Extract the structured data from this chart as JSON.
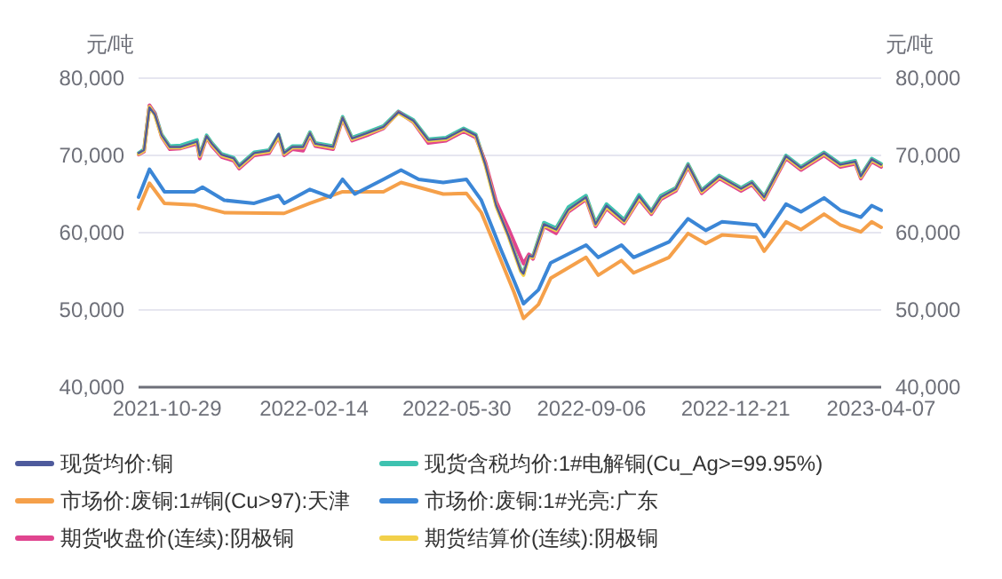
{
  "chart_data": {
    "type": "line",
    "ylabel": "元/吨",
    "y2label": "元/吨",
    "xlim": [
      "2021-10-08",
      "2023-04-07"
    ],
    "xticks": [
      "2021-10-29",
      "2022-02-14",
      "2022-05-30",
      "2022-09-06",
      "2022-12-21",
      "2023-04-07"
    ],
    "ylim": [
      40000,
      80000
    ],
    "yticks": [
      {
        "value": 40000,
        "label": "40,000"
      },
      {
        "value": 50000,
        "label": "50,000"
      },
      {
        "value": 60000,
        "label": "60,000"
      },
      {
        "value": 70000,
        "label": "70,000"
      },
      {
        "value": 80000,
        "label": "80,000"
      }
    ],
    "y2lim": [
      40000,
      80000
    ],
    "y2ticks": [
      {
        "value": 40000,
        "label": "40,000"
      },
      {
        "value": 50000,
        "label": "50,000"
      },
      {
        "value": 60000,
        "label": "60,000"
      },
      {
        "value": 70000,
        "label": "70,000"
      },
      {
        "value": 80000,
        "label": "80,000"
      }
    ],
    "grid": "y",
    "legend": "bottom",
    "marker": "none",
    "line_style": "solid",
    "x": [
      "2021-10-08",
      "2021-10-12",
      "2021-10-16",
      "2021-10-20",
      "2021-10-25",
      "2021-10-31",
      "2021-11-08",
      "2021-11-20",
      "2021-11-22",
      "2021-11-27",
      "2021-12-01",
      "2021-12-08",
      "2021-12-17",
      "2021-12-21",
      "2022-01-01",
      "2022-01-12",
      "2022-01-19",
      "2022-01-23",
      "2022-01-29",
      "2022-02-06",
      "2022-02-11",
      "2022-02-15",
      "2022-02-28",
      "2022-03-07",
      "2022-03-14",
      "2022-03-25",
      "2022-04-06",
      "2022-04-17",
      "2022-04-28",
      "2022-05-09",
      "2022-05-22",
      "2022-06-04",
      "2022-06-13",
      "2022-06-20",
      "2022-06-28",
      "2022-07-07",
      "2022-07-16",
      "2022-07-18",
      "2022-07-22",
      "2022-07-25",
      "2022-08-02",
      "2022-08-11",
      "2022-08-20",
      "2022-09-02",
      "2022-09-09",
      "2022-09-17",
      "2022-09-30",
      "2022-10-11",
      "2022-10-20",
      "2022-10-27",
      "2022-11-07",
      "2022-11-16",
      "2022-11-26",
      "2022-12-09",
      "2022-12-25",
      "2023-01-02",
      "2023-01-11",
      "2023-01-27",
      "2023-02-07",
      "2023-02-24",
      "2023-03-08",
      "2023-03-19",
      "2023-03-23",
      "2023-03-31",
      "2023-04-07"
    ],
    "series": [
      {
        "name": "现货均价:铜",
        "color": "#4e5a9c",
        "values": [
          70300,
          70700,
          76200,
          75300,
          72600,
          71100,
          71100,
          71800,
          70000,
          72500,
          71500,
          70100,
          69600,
          68600,
          70300,
          70600,
          72800,
          70300,
          71100,
          71100,
          72900,
          71500,
          71100,
          74900,
          72200,
          72900,
          73700,
          75600,
          74500,
          72000,
          72200,
          73400,
          72600,
          68800,
          63500,
          59600,
          55100,
          54700,
          57000,
          56900,
          61100,
          60400,
          63000,
          64600,
          61100,
          63500,
          61500,
          64700,
          62700,
          64600,
          65700,
          68800,
          65400,
          67300,
          65700,
          66500,
          64600,
          69900,
          68400,
          70300,
          68800,
          69200,
          67300,
          69500,
          68800
        ]
      },
      {
        "name": "现货含税均价:1#电解铜(Cu_Ag>=99.95%)",
        "color": "#3ec2b0",
        "values": [
          70300,
          70800,
          76400,
          75500,
          72700,
          71200,
          71300,
          72000,
          70100,
          72600,
          71600,
          70200,
          69700,
          68700,
          70400,
          70700,
          72700,
          70400,
          71200,
          71200,
          73000,
          71600,
          71200,
          75000,
          72300,
          73000,
          73800,
          75700,
          74600,
          72100,
          72300,
          73500,
          72700,
          68900,
          63600,
          59700,
          55300,
          54800,
          57100,
          57000,
          61300,
          60600,
          63300,
          64800,
          61300,
          63700,
          61700,
          64900,
          62800,
          64800,
          65800,
          68900,
          65500,
          67400,
          65800,
          66600,
          64700,
          70000,
          68500,
          70400,
          68900,
          69300,
          67400,
          69600,
          68900
        ]
      },
      {
        "name": "市场价:废铜:1#铜(Cu>97):天津",
        "color": "#f5a04a",
        "x": [
          "2021-10-08",
          "2021-10-16",
          "2021-10-27",
          "2021-11-18",
          "2021-12-10",
          "2022-01-23",
          "2022-02-11",
          "2022-03-07",
          "2022-04-06",
          "2022-04-19",
          "2022-05-20",
          "2022-06-06",
          "2022-06-17",
          "2022-07-01",
          "2022-07-11",
          "2022-07-18",
          "2022-07-29",
          "2022-08-07",
          "2022-09-02",
          "2022-09-11",
          "2022-09-28",
          "2022-10-07",
          "2022-11-02",
          "2022-11-16",
          "2022-11-29",
          "2022-12-11",
          "2023-01-05",
          "2023-01-11",
          "2023-01-27",
          "2023-02-07",
          "2023-02-24",
          "2023-03-08",
          "2023-03-23",
          "2023-03-31",
          "2023-04-07"
        ],
        "values": [
          63100,
          66400,
          63800,
          63600,
          62600,
          62500,
          63800,
          65300,
          65300,
          66500,
          65000,
          65100,
          62600,
          56600,
          52300,
          48900,
          50700,
          54100,
          56800,
          54500,
          56400,
          54800,
          56800,
          59900,
          58600,
          59700,
          59400,
          57600,
          61400,
          60400,
          62400,
          61000,
          60100,
          61400,
          60700
        ]
      },
      {
        "name": "市场价:废铜:1#光亮:广东",
        "color": "#3b86d6",
        "x": [
          "2021-10-08",
          "2021-10-16",
          "2021-10-27",
          "2021-11-18",
          "2021-11-24",
          "2021-12-10",
          "2022-01-01",
          "2022-01-19",
          "2022-01-23",
          "2022-02-11",
          "2022-02-26",
          "2022-03-07",
          "2022-03-16",
          "2022-04-06",
          "2022-04-19",
          "2022-05-02",
          "2022-05-20",
          "2022-06-06",
          "2022-06-17",
          "2022-07-01",
          "2022-07-11",
          "2022-07-18",
          "2022-07-29",
          "2022-08-07",
          "2022-09-02",
          "2022-09-11",
          "2022-09-28",
          "2022-10-07",
          "2022-11-02",
          "2022-11-16",
          "2022-11-29",
          "2022-12-11",
          "2023-01-05",
          "2023-01-11",
          "2023-01-27",
          "2023-02-07",
          "2023-02-24",
          "2023-03-08",
          "2023-03-23",
          "2023-03-31",
          "2023-04-07"
        ],
        "values": [
          64600,
          68200,
          65300,
          65300,
          65900,
          64200,
          63800,
          64800,
          63800,
          65600,
          64600,
          66900,
          65000,
          66900,
          68100,
          66900,
          66500,
          66900,
          64200,
          58000,
          53800,
          50800,
          52600,
          56100,
          58400,
          56800,
          58400,
          56800,
          58800,
          61800,
          60300,
          61400,
          61000,
          59500,
          63700,
          62700,
          64500,
          62900,
          62000,
          63500,
          62900
        ]
      },
      {
        "name": "期货收盘价(连续):阴极铜",
        "color": "#e0458f",
        "values": [
          70100,
          70500,
          76500,
          75400,
          72400,
          70800,
          70900,
          71500,
          69600,
          72300,
          71200,
          69800,
          69300,
          68300,
          70000,
          70300,
          72400,
          70000,
          70800,
          70600,
          72600,
          71200,
          70800,
          74700,
          71900,
          72600,
          73500,
          75600,
          74300,
          71600,
          71900,
          73100,
          72300,
          69100,
          64000,
          60500,
          56800,
          56000,
          57200,
          56600,
          60800,
          59900,
          62700,
          64300,
          60800,
          63100,
          61200,
          64300,
          62400,
          64300,
          65400,
          68500,
          65100,
          67000,
          65400,
          66200,
          64300,
          69600,
          68100,
          70000,
          68500,
          68900,
          67000,
          69200,
          68500
        ]
      },
      {
        "name": "期货结算价(连续):阴极铜",
        "color": "#f2d04a",
        "values": [
          70200,
          70600,
          76300,
          75200,
          72500,
          71000,
          71000,
          71700,
          69900,
          72400,
          71400,
          70000,
          69500,
          68500,
          70200,
          70500,
          72500,
          70200,
          71000,
          71000,
          72800,
          71400,
          71000,
          74800,
          72100,
          72800,
          73600,
          75500,
          74400,
          71900,
          72100,
          73300,
          72500,
          68700,
          63400,
          59500,
          55000,
          54500,
          56900,
          56800,
          61000,
          60300,
          62900,
          64500,
          61000,
          63300,
          61400,
          64500,
          62600,
          64500,
          65600,
          68700,
          65300,
          67200,
          65600,
          66400,
          64500,
          69800,
          68300,
          70200,
          68700,
          69100,
          67200,
          69400,
          68700
        ]
      }
    ]
  }
}
